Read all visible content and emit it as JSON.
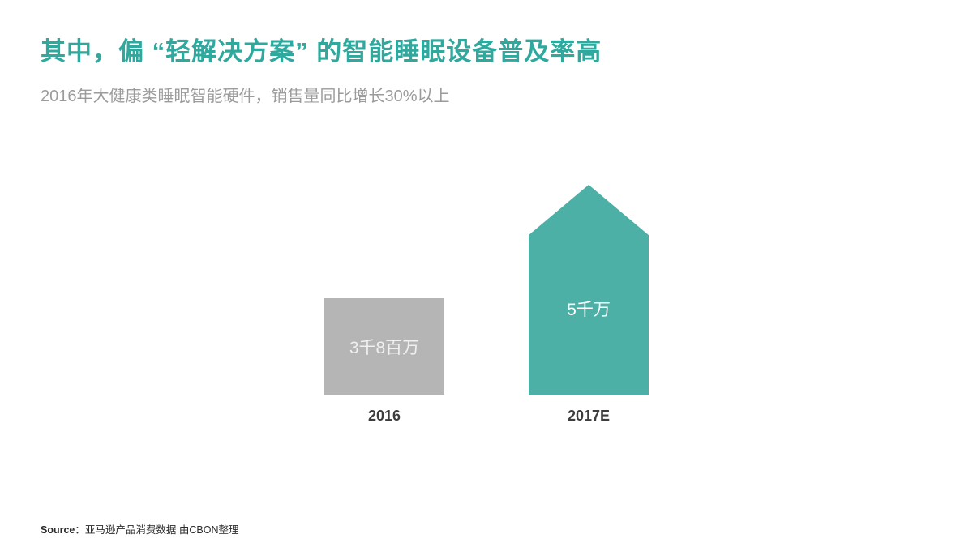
{
  "slide": {
    "title": "其中，偏 “轻解决方案” 的智能睡眠设备普及率高",
    "subtitle": "2016年大健康类睡眠智能硬件，销售量同比增长30%以上",
    "source_label": "Source",
    "source_text": "：亚马逊产品消费数据 由CBON整理"
  },
  "colors": {
    "title_teal": "#2fa89d",
    "bar_teal": "#4cb0a6",
    "bar_gray": "#b5b5b5",
    "subtitle_gray": "#9b9b9b"
  },
  "chart_data": {
    "type": "bar",
    "title": "其中，偏 “轻解决方案” 的智能睡眠设备普及率高",
    "subtitle": "2016年大健康类睡眠智能硬件，销售量同比增长30%以上",
    "categories": [
      "2016",
      "2017E"
    ],
    "values": [
      38000000,
      50000000
    ],
    "value_labels": [
      "3千8百万",
      "5千万"
    ],
    "xlabel": "",
    "ylabel": "",
    "axes_visible": false,
    "grid": false,
    "legend": "none",
    "series_colors": [
      "#b5b5b5",
      "#4cb0a6"
    ],
    "annotations": [
      "2017E bar drawn as upward-pointing arrow to emphasize growth"
    ]
  }
}
